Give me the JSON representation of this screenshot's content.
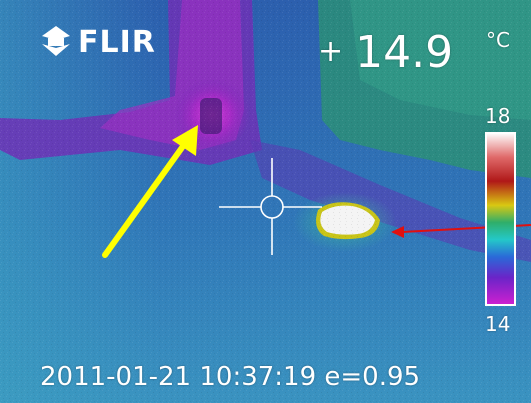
{
  "brand": {
    "label": "FLIR",
    "icon": "flir-logo-icon"
  },
  "readout": {
    "prefix": "+",
    "value": "14.9",
    "unit": "°C"
  },
  "scale": {
    "max": "18",
    "min": "14"
  },
  "status": {
    "timestamp": "2011-01-21 10:37:19 e=0.95"
  },
  "colors": {
    "background_blue": "#2f70b4",
    "wall_green": "#2c8f78",
    "cold_magenta": "#b12cc8",
    "hotspot_white": "#f4f4f4",
    "arrow_yellow": "#ffff00",
    "arrow_red": "#e01010"
  },
  "icons": [
    "crosshair-icon",
    "yellow-arrow-icon",
    "red-arrow-icon",
    "flir-logo-icon"
  ]
}
